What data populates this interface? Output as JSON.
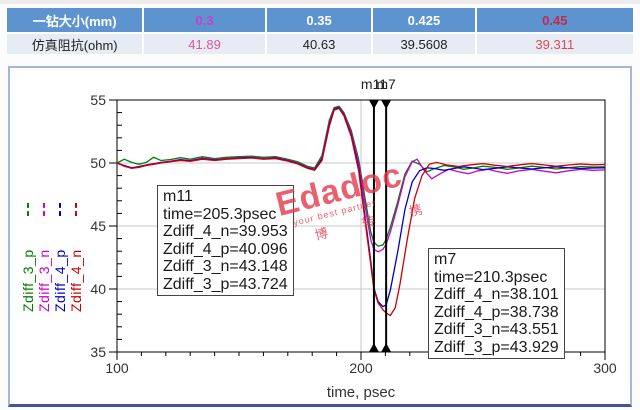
{
  "table": {
    "header": {
      "label": "一钻大小(mm)",
      "values": [
        {
          "text": "0.3",
          "color": "#c93ece"
        },
        {
          "text": "0.35",
          "color": "#ffffff"
        },
        {
          "text": "0.425",
          "color": "#ffffff"
        },
        {
          "text": "0.45",
          "color": "#c22a4a"
        }
      ]
    },
    "row": {
      "label": "仿真阻抗(ohm)",
      "values": [
        {
          "text": "41.89",
          "color": "#db57a4"
        },
        {
          "text": "40.63",
          "color": "#222222"
        },
        {
          "text": "39.5608",
          "color": "#222222"
        },
        {
          "text": "39.311",
          "color": "#e04b4b"
        }
      ]
    }
  },
  "chart_data": {
    "type": "line",
    "xlabel": "time, psec",
    "x_range": [
      100,
      300
    ],
    "y_range": [
      35,
      55
    ],
    "x_ticks": [
      100,
      200,
      300
    ],
    "y_ticks": [
      55,
      50,
      45,
      40,
      35
    ],
    "x_minor_step": 10,
    "y_minor_step": 1,
    "grid_x": [
      200
    ],
    "grid_y": [
      40,
      45,
      50
    ],
    "legend_position": "left",
    "series": [
      {
        "name": "Zdiff_3_p",
        "color": "#008000",
        "points": [
          [
            100,
            50.0
          ],
          [
            103,
            50.3
          ],
          [
            106,
            50.05
          ],
          [
            109,
            49.9
          ],
          [
            112,
            50.05
          ],
          [
            115,
            50.45
          ],
          [
            118,
            50.2
          ],
          [
            122,
            50.28
          ],
          [
            126,
            50.42
          ],
          [
            130,
            50.3
          ],
          [
            135,
            50.5
          ],
          [
            140,
            50.35
          ],
          [
            145,
            50.45
          ],
          [
            150,
            50.5
          ],
          [
            155,
            50.55
          ],
          [
            160,
            50.45
          ],
          [
            165,
            50.5
          ],
          [
            170,
            50.3
          ],
          [
            174,
            50.1
          ],
          [
            178,
            49.75
          ],
          [
            181,
            49.6
          ],
          [
            184,
            50.6
          ],
          [
            187,
            53.4
          ],
          [
            189,
            54.4
          ],
          [
            191,
            54.5
          ],
          [
            193,
            54.0
          ],
          [
            196,
            52.6
          ],
          [
            199,
            50.3
          ],
          [
            202,
            46.8
          ],
          [
            204,
            44.5
          ],
          [
            205.3,
            43.724
          ],
          [
            207,
            43.4
          ],
          [
            209,
            43.5
          ],
          [
            210.3,
            43.929
          ],
          [
            212,
            44.9
          ],
          [
            215,
            46.9
          ],
          [
            218,
            49.1
          ],
          [
            221,
            50.15
          ],
          [
            224,
            49.9
          ],
          [
            227,
            49.3
          ],
          [
            230,
            49.55
          ],
          [
            234,
            49.8
          ],
          [
            238,
            49.7
          ],
          [
            242,
            49.5
          ],
          [
            246,
            49.6
          ],
          [
            250,
            49.75
          ],
          [
            255,
            49.65
          ],
          [
            260,
            49.5
          ],
          [
            265,
            49.62
          ],
          [
            270,
            49.75
          ],
          [
            275,
            49.65
          ],
          [
            280,
            49.52
          ],
          [
            285,
            49.62
          ],
          [
            290,
            49.72
          ],
          [
            295,
            49.68
          ],
          [
            300,
            49.7
          ]
        ]
      },
      {
        "name": "Zdiff_3_n",
        "color": "#cc00cc",
        "points": [
          [
            100,
            50.0
          ],
          [
            103,
            49.8
          ],
          [
            106,
            49.62
          ],
          [
            109,
            49.72
          ],
          [
            112,
            49.85
          ],
          [
            115,
            49.95
          ],
          [
            118,
            50.05
          ],
          [
            122,
            50.15
          ],
          [
            126,
            50.28
          ],
          [
            130,
            50.2
          ],
          [
            135,
            50.38
          ],
          [
            140,
            50.26
          ],
          [
            145,
            50.36
          ],
          [
            150,
            50.42
          ],
          [
            155,
            50.46
          ],
          [
            160,
            50.36
          ],
          [
            165,
            50.42
          ],
          [
            170,
            50.22
          ],
          [
            174,
            50.0
          ],
          [
            178,
            49.65
          ],
          [
            181,
            49.5
          ],
          [
            184,
            50.4
          ],
          [
            187,
            53.2
          ],
          [
            189,
            54.3
          ],
          [
            191,
            54.42
          ],
          [
            193,
            53.9
          ],
          [
            196,
            52.4
          ],
          [
            199,
            50.0
          ],
          [
            202,
            46.2
          ],
          [
            204,
            43.9
          ],
          [
            205.3,
            43.148
          ],
          [
            207,
            42.95
          ],
          [
            209,
            43.15
          ],
          [
            210.3,
            43.551
          ],
          [
            212,
            44.5
          ],
          [
            215,
            46.6
          ],
          [
            218,
            48.9
          ],
          [
            221,
            50.1
          ],
          [
            223,
            50.3
          ],
          [
            226,
            49.4
          ],
          [
            229,
            48.75
          ],
          [
            232,
            49.1
          ],
          [
            236,
            49.5
          ],
          [
            240,
            49.3
          ],
          [
            244,
            49.15
          ],
          [
            248,
            49.38
          ],
          [
            252,
            49.5
          ],
          [
            256,
            49.32
          ],
          [
            260,
            49.18
          ],
          [
            265,
            49.38
          ],
          [
            270,
            49.5
          ],
          [
            275,
            49.35
          ],
          [
            280,
            49.22
          ],
          [
            285,
            49.38
          ],
          [
            290,
            49.5
          ],
          [
            295,
            49.42
          ],
          [
            300,
            49.45
          ]
        ]
      },
      {
        "name": "Zdiff_4_p",
        "color": "#0000cc",
        "points": [
          [
            100,
            50.0
          ],
          [
            103,
            49.78
          ],
          [
            106,
            49.6
          ],
          [
            109,
            49.7
          ],
          [
            112,
            49.82
          ],
          [
            115,
            49.92
          ],
          [
            118,
            50.02
          ],
          [
            122,
            50.12
          ],
          [
            126,
            50.24
          ],
          [
            130,
            50.16
          ],
          [
            135,
            50.33
          ],
          [
            140,
            50.22
          ],
          [
            145,
            50.32
          ],
          [
            150,
            50.38
          ],
          [
            155,
            50.42
          ],
          [
            160,
            50.32
          ],
          [
            165,
            50.38
          ],
          [
            170,
            50.18
          ],
          [
            174,
            49.96
          ],
          [
            178,
            49.6
          ],
          [
            181,
            49.46
          ],
          [
            184,
            50.3
          ],
          [
            187,
            53.0
          ],
          [
            189,
            54.25
          ],
          [
            191,
            54.38
          ],
          [
            193,
            53.8
          ],
          [
            196,
            52.2
          ],
          [
            199,
            49.6
          ],
          [
            202,
            45.2
          ],
          [
            204,
            42.2
          ],
          [
            205.3,
            40.096
          ],
          [
            207,
            39.0
          ],
          [
            209,
            38.6
          ],
          [
            210.3,
            38.738
          ],
          [
            212,
            39.9
          ],
          [
            215,
            42.9
          ],
          [
            218,
            46.3
          ],
          [
            221,
            48.5
          ],
          [
            224,
            49.4
          ],
          [
            227,
            49.62
          ],
          [
            230,
            49.56
          ],
          [
            234,
            49.42
          ],
          [
            238,
            49.56
          ],
          [
            242,
            49.7
          ],
          [
            246,
            49.6
          ],
          [
            250,
            49.48
          ],
          [
            255,
            49.58
          ],
          [
            260,
            49.7
          ],
          [
            265,
            49.6
          ],
          [
            270,
            49.52
          ],
          [
            275,
            49.62
          ],
          [
            280,
            49.7
          ],
          [
            285,
            49.62
          ],
          [
            290,
            49.56
          ],
          [
            295,
            49.6
          ],
          [
            300,
            49.62
          ]
        ]
      },
      {
        "name": "Zdiff_4_n",
        "color": "#cc0000",
        "points": [
          [
            100,
            50.0
          ],
          [
            103,
            49.75
          ],
          [
            106,
            49.58
          ],
          [
            109,
            49.66
          ],
          [
            112,
            49.8
          ],
          [
            115,
            49.9
          ],
          [
            118,
            50.0
          ],
          [
            122,
            50.1
          ],
          [
            126,
            50.2
          ],
          [
            130,
            50.13
          ],
          [
            135,
            50.3
          ],
          [
            140,
            50.2
          ],
          [
            145,
            50.3
          ],
          [
            150,
            50.35
          ],
          [
            155,
            50.4
          ],
          [
            160,
            50.3
          ],
          [
            165,
            50.35
          ],
          [
            170,
            50.15
          ],
          [
            174,
            49.93
          ],
          [
            178,
            49.58
          ],
          [
            181,
            49.43
          ],
          [
            184,
            50.2
          ],
          [
            187,
            52.9
          ],
          [
            189,
            54.2
          ],
          [
            191,
            54.33
          ],
          [
            193,
            53.75
          ],
          [
            196,
            52.1
          ],
          [
            199,
            49.4
          ],
          [
            202,
            44.9
          ],
          [
            204,
            41.9
          ],
          [
            205.3,
            39.953
          ],
          [
            207,
            38.9
          ],
          [
            209,
            38.35
          ],
          [
            210.3,
            38.101
          ],
          [
            212,
            37.9
          ],
          [
            214,
            38.5
          ],
          [
            216,
            40.4
          ],
          [
            219,
            44.0
          ],
          [
            222,
            47.2
          ],
          [
            225,
            49.0
          ],
          [
            228,
            49.9
          ],
          [
            231,
            50.05
          ],
          [
            235,
            49.85
          ],
          [
            240,
            49.72
          ],
          [
            245,
            49.86
          ],
          [
            250,
            49.95
          ],
          [
            255,
            49.82
          ],
          [
            260,
            49.72
          ],
          [
            265,
            49.86
          ],
          [
            270,
            49.95
          ],
          [
            275,
            49.85
          ],
          [
            280,
            49.74
          ],
          [
            285,
            49.84
          ],
          [
            290,
            49.92
          ],
          [
            295,
            49.86
          ],
          [
            300,
            49.88
          ]
        ]
      }
    ],
    "markers": [
      {
        "label": "m11",
        "time": 205.3,
        "box_lines": [
          "m11",
          "time=205.3psec",
          "Zdiff_4_n=39.953",
          "Zdiff_4_p=40.096",
          "Zdiff_3_n=43.148",
          "Zdiff_3_p=43.724"
        ]
      },
      {
        "label": "m7",
        "time": 210.3,
        "box_lines": [
          "m7",
          "time=210.3psec",
          "Zdiff_4_n=38.101",
          "Zdiff_4_p=38.738",
          "Zdiff_3_n=43.551",
          "Zdiff_3_p=43.929"
        ]
      }
    ]
  },
  "watermark": {
    "text": "Edadoc",
    "tagline": "your best partner",
    "cn": "博 转 携",
    "color": "#e23b4e"
  }
}
